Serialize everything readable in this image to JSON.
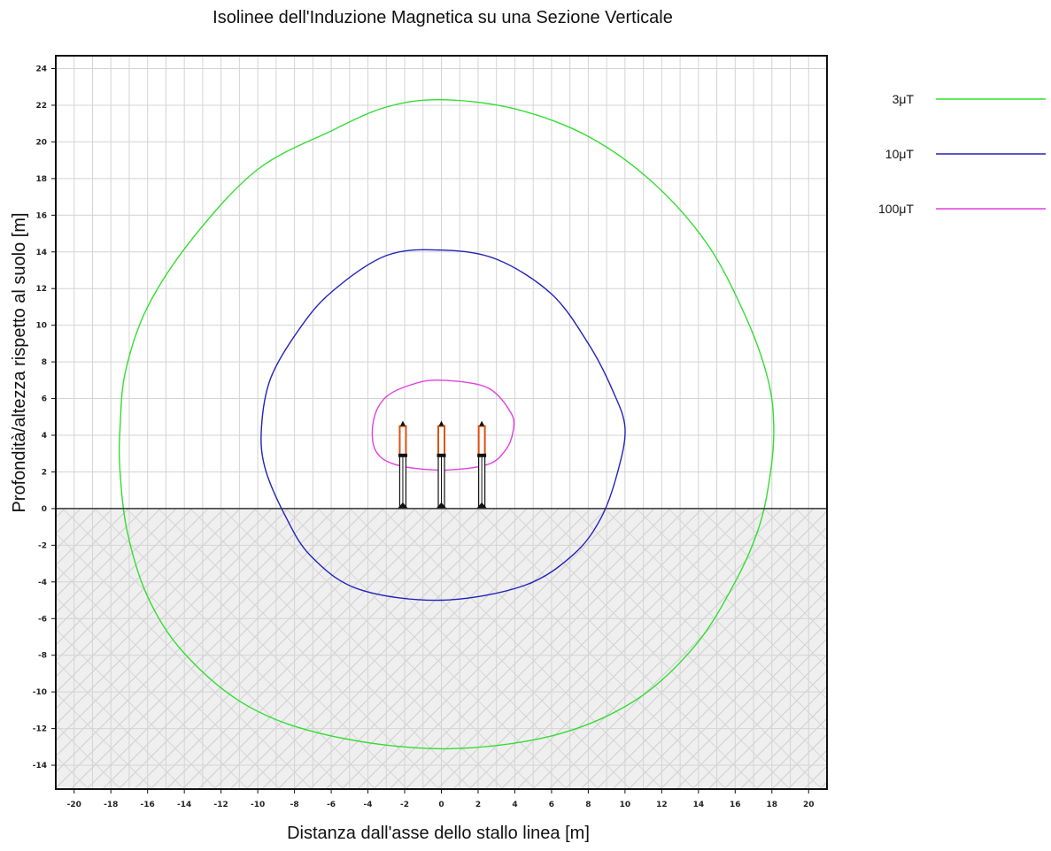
{
  "chart_data": {
    "type": "line",
    "title": "Isolinee dell'Induzione Magnetica su una Sezione Verticale",
    "xlabel": "Distanza dall'asse dello stallo linea [m]",
    "ylabel": "Profondità/altezza rispetto al suolo [m]",
    "xlim": [
      -21,
      21
    ],
    "ylim": [
      -15.3,
      24.7
    ],
    "x_ticks": [
      -20,
      -18,
      -16,
      -14,
      -12,
      -10,
      -8,
      -6,
      -4,
      -2,
      0,
      2,
      4,
      6,
      8,
      10,
      12,
      14,
      16,
      18,
      20
    ],
    "y_ticks": [
      24,
      22,
      20,
      18,
      16,
      14,
      12,
      10,
      8,
      6,
      4,
      2,
      0,
      -2,
      -4,
      -6,
      -8,
      -10,
      -12,
      -14
    ],
    "grid": true,
    "ground_level": 0,
    "underground_hatched": true,
    "legend_position": "right",
    "series": [
      {
        "name": "3μT",
        "color": "#33dd33",
        "points": [
          [
            0,
            22.3
          ],
          [
            4,
            21.8
          ],
          [
            8,
            20.3
          ],
          [
            11.5,
            17.8
          ],
          [
            14.5,
            14.4
          ],
          [
            16.6,
            10.4
          ],
          [
            17.8,
            7
          ],
          [
            18.1,
            4.4
          ],
          [
            17.9,
            1.8
          ],
          [
            17.3,
            -1
          ],
          [
            16,
            -4
          ],
          [
            13.8,
            -7.5
          ],
          [
            10.5,
            -10.5
          ],
          [
            6,
            -12.4
          ],
          [
            0,
            -13.1
          ],
          [
            -6,
            -12.4
          ],
          [
            -10.5,
            -10.8
          ],
          [
            -14,
            -7.9
          ],
          [
            -16,
            -4.8
          ],
          [
            -17.1,
            -1.3
          ],
          [
            -17.5,
            2
          ],
          [
            -17.5,
            4.4
          ],
          [
            -17.2,
            7.5
          ],
          [
            -16,
            11
          ],
          [
            -13.5,
            14.8
          ],
          [
            -10,
            18.5
          ],
          [
            -6,
            20.6
          ],
          [
            -3,
            21.9
          ],
          [
            0,
            22.3
          ]
        ]
      },
      {
        "name": "10μT",
        "color": "#2222bb",
        "points": [
          [
            0,
            14.1
          ],
          [
            3,
            13.6
          ],
          [
            6,
            11.7
          ],
          [
            8,
            9
          ],
          [
            9.3,
            6.5
          ],
          [
            10,
            4.4
          ],
          [
            9.6,
            2
          ],
          [
            8.7,
            -0.5
          ],
          [
            7.2,
            -2.5
          ],
          [
            4.5,
            -4.2
          ],
          [
            0,
            -5
          ],
          [
            -4.5,
            -4.4
          ],
          [
            -7.1,
            -2.6
          ],
          [
            -8.5,
            -0.4
          ],
          [
            -9.6,
            2.2
          ],
          [
            -9.8,
            4.4
          ],
          [
            -9.3,
            7.1
          ],
          [
            -7.8,
            9.7
          ],
          [
            -6,
            11.8
          ],
          [
            -3,
            13.8
          ],
          [
            0,
            14.1
          ]
        ]
      },
      {
        "name": "100μT",
        "color": "#e040e0",
        "points": [
          [
            0,
            7
          ],
          [
            2.5,
            6.6
          ],
          [
            3.8,
            5.2
          ],
          [
            3.9,
            4.2
          ],
          [
            3.5,
            3.2
          ],
          [
            2.5,
            2.4
          ],
          [
            0,
            2.1
          ],
          [
            -2.5,
            2.4
          ],
          [
            -3.6,
            3.2
          ],
          [
            -3.7,
            4.8
          ],
          [
            -3,
            6.1
          ],
          [
            -1.5,
            6.8
          ],
          [
            0,
            7
          ]
        ]
      }
    ],
    "conductors": [
      {
        "x": -2.1,
        "top": 4.5,
        "bottom": 2.9
      },
      {
        "x": 0,
        "top": 4.5,
        "bottom": 2.9
      },
      {
        "x": 2.2,
        "top": 4.5,
        "bottom": 2.9
      }
    ]
  }
}
